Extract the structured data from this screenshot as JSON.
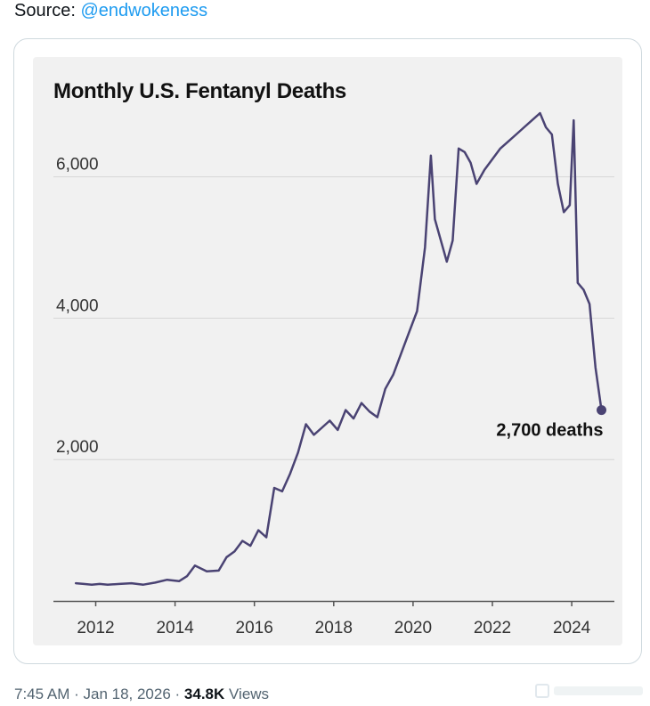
{
  "tweet": {
    "source_prefix": "Source: ",
    "source_handle": "@endwokeness",
    "time": "7:45 AM",
    "separator": " · ",
    "date": "Jan 18, 2026",
    "separator2": " · ",
    "views_count": "34.8K",
    "views_label": " Views"
  },
  "colors": {
    "line": "#4a4373",
    "grid": "#d6d6d6",
    "axis": "#555555",
    "link": "#1d9bf0"
  },
  "chart_data": {
    "type": "line",
    "title": "Monthly U.S. Fentanyl Deaths",
    "xlabel": "",
    "ylabel": "",
    "xlim": [
      2011.2,
      2025.0
    ],
    "ylim": [
      0,
      7000
    ],
    "x_ticks": [
      2012,
      2014,
      2016,
      2018,
      2020,
      2022,
      2024
    ],
    "x_tick_labels": [
      "2012",
      "2014",
      "2016",
      "2018",
      "2020",
      "2022",
      "2024"
    ],
    "y_ticks": [
      2000,
      4000,
      6000
    ],
    "y_tick_labels": [
      "2,000",
      "4,000",
      "6,000"
    ],
    "grid": "horizontal",
    "annotation": {
      "text": "2,700 deaths",
      "x": 2024.75,
      "y": 2700
    },
    "series": [
      {
        "name": "Monthly U.S. Fentanyl Deaths",
        "x": [
          2011.5,
          2011.7,
          2011.9,
          2012.1,
          2012.3,
          2012.6,
          2012.9,
          2013.2,
          2013.5,
          2013.8,
          2014.1,
          2014.3,
          2014.5,
          2014.8,
          2015.1,
          2015.3,
          2015.5,
          2015.7,
          2015.9,
          2016.1,
          2016.3,
          2016.5,
          2016.7,
          2016.9,
          2017.1,
          2017.3,
          2017.5,
          2017.7,
          2017.9,
          2018.1,
          2018.3,
          2018.5,
          2018.7,
          2018.9,
          2019.1,
          2019.3,
          2019.5,
          2019.7,
          2019.9,
          2020.1,
          2020.3,
          2020.45,
          2020.55,
          2020.7,
          2020.85,
          2021.0,
          2021.15,
          2021.3,
          2021.45,
          2021.6,
          2021.8,
          2022.0,
          2022.2,
          2022.4,
          2022.6,
          2022.8,
          2023.0,
          2023.2,
          2023.35,
          2023.5,
          2023.65,
          2023.8,
          2023.95,
          2024.05,
          2024.15,
          2024.3,
          2024.45,
          2024.6,
          2024.75
        ],
        "y": [
          250,
          240,
          230,
          240,
          230,
          240,
          250,
          230,
          260,
          300,
          280,
          350,
          500,
          420,
          430,
          620,
          700,
          850,
          780,
          1000,
          900,
          1600,
          1550,
          1800,
          2100,
          2500,
          2350,
          2450,
          2550,
          2420,
          2700,
          2580,
          2800,
          2680,
          2600,
          3000,
          3200,
          3500,
          3800,
          4100,
          5000,
          6300,
          5400,
          5100,
          4800,
          5100,
          6400,
          6350,
          6200,
          5900,
          6100,
          6250,
          6400,
          6500,
          6600,
          6700,
          6800,
          6900,
          6700,
          6600,
          5900,
          5500,
          5600,
          6800,
          4500,
          4400,
          4200,
          3300,
          2700
        ]
      }
    ]
  }
}
